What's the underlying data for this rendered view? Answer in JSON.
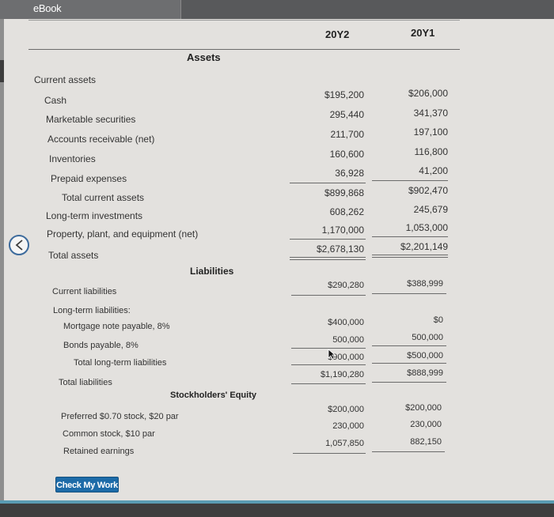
{
  "app": {
    "tab_title": "eBook"
  },
  "columns": {
    "year_current": "20Y2",
    "year_prior": "20Y1"
  },
  "sections": {
    "assets": "Assets",
    "current_assets": "Current assets",
    "liabilities": "Liabilities",
    "long_term_liabilities": "Long-term liabilities:",
    "stockholders_equity": "Stockholders' Equity"
  },
  "rows": {
    "cash": {
      "label": "Cash",
      "y2": "$195,200",
      "y1": "$206,000"
    },
    "marketable_securities": {
      "label": "Marketable securities",
      "y2": "295,440",
      "y1": "341,370"
    },
    "accounts_receivable": {
      "label": "Accounts receivable (net)",
      "y2": "211,700",
      "y1": "197,100"
    },
    "inventories": {
      "label": "Inventories",
      "y2": "160,600",
      "y1": "116,800"
    },
    "prepaid_expenses": {
      "label": "Prepaid expenses",
      "y2": "36,928",
      "y1": "41,200"
    },
    "total_current_assets": {
      "label": "Total current assets",
      "y2": "$899,868",
      "y1": "$902,470"
    },
    "long_term_investments": {
      "label": "Long-term investments",
      "y2": "608,262",
      "y1": "245,679"
    },
    "ppe": {
      "label": "Property, plant, and equipment (net)",
      "y2": "1,170,000",
      "y1": "1,053,000"
    },
    "total_assets": {
      "label": "Total assets",
      "y2": "$2,678,130",
      "y1": "$2,201,149"
    },
    "current_liabilities": {
      "label": "Current liabilities",
      "y2": "$290,280",
      "y1": "$388,999"
    },
    "mortgage_note": {
      "label": "Mortgage note payable, 8%",
      "y2": "$400,000",
      "y1": "$0"
    },
    "bonds_payable": {
      "label": "Bonds payable, 8%",
      "y2": "500,000",
      "y1": "500,000"
    },
    "total_lt_liabilities": {
      "label": "Total long-term liabilities",
      "y2": "$900,000",
      "y1": "$500,000"
    },
    "total_liabilities": {
      "label": "Total liabilities",
      "y2": "$1,190,280",
      "y1": "$888,999"
    },
    "preferred_stock": {
      "label": "Preferred $0.70 stock, $20 par",
      "y2": "$200,000",
      "y1": "$200,000"
    },
    "common_stock": {
      "label": "Common stock, $10 par",
      "y2": "230,000",
      "y1": "230,000"
    },
    "retained_earnings": {
      "label": "Retained earnings",
      "y2": "1,057,850",
      "y1": "882,150"
    }
  },
  "buttons": {
    "check_my_work": "Check My Work"
  },
  "icons": {
    "back": "chevron-left-icon",
    "cursor": "mouse-pointer-icon"
  },
  "colors": {
    "button_blue": "#1d6ba8",
    "top_bar": "#58595b"
  }
}
